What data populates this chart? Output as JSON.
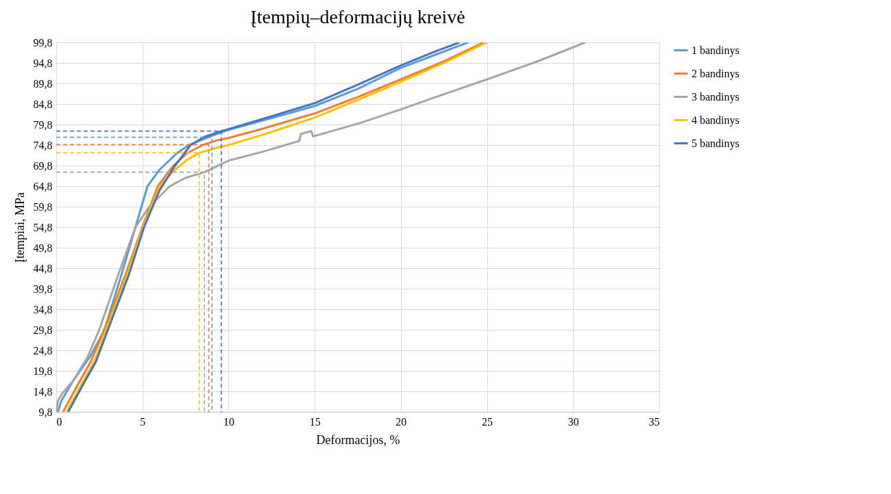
{
  "chart_data": {
    "type": "line",
    "title": "Įtempių–deformacijų kreivė",
    "xlabel": "Deformacijos, %",
    "ylabel": "Įtempiai, MPa",
    "xlim": [
      0,
      35
    ],
    "xticks": [
      0,
      5,
      10,
      15,
      20,
      25,
      30,
      35
    ],
    "ylim": [
      9.8,
      99.8
    ],
    "yticks": [
      {
        "value": 9.8,
        "label": "9,8"
      },
      {
        "value": 14.8,
        "label": "14,8"
      },
      {
        "value": 19.8,
        "label": "19,8"
      },
      {
        "value": 24.8,
        "label": "24,8"
      },
      {
        "value": 29.8,
        "label": "29,8"
      },
      {
        "value": 34.8,
        "label": "34,8"
      },
      {
        "value": 39.8,
        "label": "39,8"
      },
      {
        "value": 44.8,
        "label": "44,8"
      },
      {
        "value": 49.8,
        "label": "49,8"
      },
      {
        "value": 54.8,
        "label": "54,8"
      },
      {
        "value": 59.8,
        "label": "59,8"
      },
      {
        "value": 64.8,
        "label": "64,8"
      },
      {
        "value": 69.8,
        "label": "69,8"
      },
      {
        "value": 74.8,
        "label": "74,8"
      },
      {
        "value": 79.8,
        "label": "79,8"
      },
      {
        "value": 84.8,
        "label": "84,8"
      },
      {
        "value": 89.8,
        "label": "89,8"
      },
      {
        "value": 94.8,
        "label": "94,8"
      },
      {
        "value": 99.8,
        "label": "99,8"
      }
    ],
    "grid": true,
    "legend": "right",
    "line_style": "solid",
    "series": [
      {
        "name": "1 bandinys",
        "color": "#5b9bd5",
        "x": [
          0.1,
          0.3,
          1.0,
          2.0,
          2.8,
          3.7,
          4.6,
          5.3,
          6.0,
          7.0,
          7.7,
          8.4,
          9.0,
          10,
          12,
          15,
          17.5,
          20,
          22,
          23.9
        ],
        "values": [
          9.8,
          12.5,
          17.5,
          23.5,
          29.8,
          42,
          54.8,
          64.8,
          68.8,
          72.8,
          74.8,
          76,
          77,
          78.5,
          80.8,
          84.3,
          88.5,
          93.6,
          96.8,
          99.8
        ]
      },
      {
        "name": "2 bandinys",
        "color": "#ed7d31",
        "x": [
          0.4,
          1.2,
          2.0,
          3.0,
          4.0,
          5.0,
          5.9,
          6.8,
          7.6,
          8.5,
          9.3,
          10,
          12,
          15,
          17.5,
          20,
          22.5,
          24.8
        ],
        "values": [
          9.8,
          16,
          22,
          32,
          43,
          54.8,
          64.8,
          69.8,
          72.8,
          74.8,
          75.9,
          76.5,
          78.8,
          82.5,
          86.5,
          90.8,
          95.2,
          99.8
        ]
      },
      {
        "name": "3 bandinys",
        "color": "#a5a5a5",
        "x": [
          0,
          0.1,
          0.3,
          1.0,
          1.8,
          2.5,
          3.5,
          4.6,
          5.4,
          6.6,
          7.5,
          8.6,
          10,
          12,
          14.1,
          14.2,
          14.8,
          14.9,
          17.5,
          20,
          22.5,
          25,
          28,
          30.7
        ],
        "values": [
          9.8,
          12.5,
          14,
          17.5,
          23,
          29.8,
          42,
          54.8,
          59.8,
          64.8,
          66.8,
          68.2,
          71,
          73.2,
          75.8,
          77.5,
          78.2,
          76.9,
          80,
          83.5,
          87.2,
          90.8,
          95.3,
          99.8
        ]
      },
      {
        "name": "4 bandinys",
        "color": "#ffc000",
        "x": [
          0.6,
          1.4,
          2.2,
          3.1,
          4.1,
          5.05,
          6.0,
          6.9,
          7.6,
          8.3,
          9.2,
          10,
          12,
          15,
          17.5,
          20,
          22.5,
          25
        ],
        "values": [
          9.8,
          16,
          22,
          32,
          43,
          54.8,
          64.8,
          68.8,
          71.2,
          72.9,
          74,
          74.8,
          77.3,
          81.5,
          85.8,
          90.2,
          94.8,
          99.8
        ]
      },
      {
        "name": "5 bandinys",
        "color": "#4472c4",
        "x": [
          0.7,
          1.5,
          2.3,
          3.2,
          4.2,
          5.1,
          6.0,
          6.9,
          7.8,
          8.6,
          9.58,
          10,
          12,
          15,
          17.5,
          20,
          22,
          23.4
        ],
        "values": [
          9.8,
          16,
          22,
          32,
          43,
          54.8,
          63.8,
          69.8,
          74.8,
          76.8,
          78.2,
          78.7,
          81.2,
          85,
          89.5,
          94.2,
          97.6,
          99.8
        ]
      },
      {
        "color": "#5b9bd5",
        "line_style": "dashed",
        "x": [
          0,
          9.04,
          9.04
        ],
        "values": [
          76.7,
          76.7,
          9.8
        ]
      },
      {
        "color": "#ed7d31",
        "line_style": "dashed",
        "x": [
          0,
          8.85,
          8.85
        ],
        "values": [
          74.9,
          74.9,
          9.8
        ]
      },
      {
        "color": "#a5a5a5",
        "line_style": "dashed",
        "x": [
          0,
          8.6,
          8.6
        ],
        "values": [
          68.2,
          68.2,
          9.8
        ]
      },
      {
        "color": "#ffc000",
        "line_style": "dashed",
        "x": [
          0,
          8.3,
          8.3
        ],
        "values": [
          72.9,
          72.9,
          9.8
        ]
      },
      {
        "color": "#4472c4",
        "line_style": "dashed",
        "x": [
          0,
          9.58,
          9.58
        ],
        "values": [
          78.2,
          78.2,
          9.8
        ]
      }
    ]
  }
}
